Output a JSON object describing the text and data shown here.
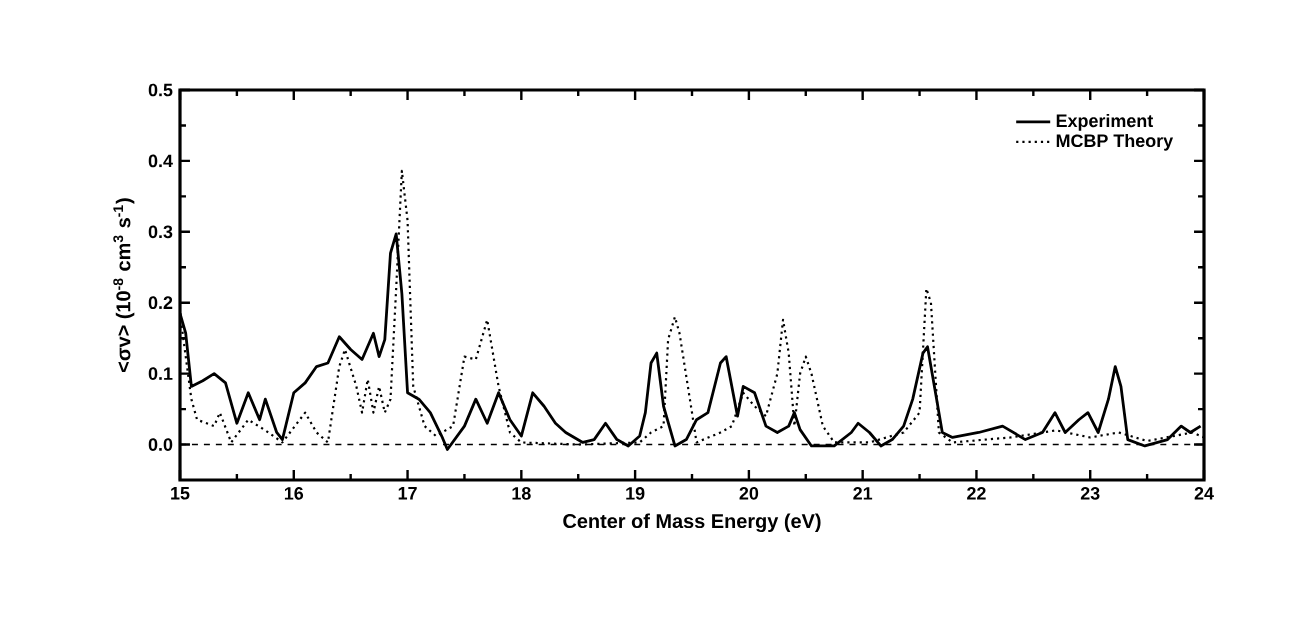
{
  "chart_data": {
    "type": "line",
    "xlabel": "Center of Mass Energy (eV)",
    "ylabel": "<σv> (10$^{-8}$ cm$^{3}$ s$^{-1}$)",
    "xlim": [
      15,
      24
    ],
    "ylim": [
      -0.05,
      0.5
    ],
    "xticks": [
      15,
      16,
      17,
      18,
      19,
      20,
      21,
      22,
      23,
      24
    ],
    "yticks": [
      {
        "value": 0,
        "label": "0.0"
      },
      0.1,
      0.2,
      0.3,
      0.4,
      0.5
    ],
    "grid": false,
    "legend": "top right",
    "ref_lines": [
      {
        "axis": "y",
        "value": 0,
        "line_style": "dashed",
        "color": "#000000"
      }
    ],
    "series": [
      {
        "name": "Experiment",
        "color": "#000000",
        "line_style": "solid",
        "x": [
          15.0,
          15.05,
          15.1,
          15.2,
          15.3,
          15.4,
          15.5,
          15.6,
          15.7,
          15.75,
          15.85,
          15.9,
          16.0,
          16.1,
          16.2,
          16.3,
          16.4,
          16.5,
          16.6,
          16.7,
          16.75,
          16.8,
          16.85,
          16.9,
          16.95,
          17.0,
          17.1,
          17.2,
          17.3,
          17.35,
          17.5,
          17.6,
          17.7,
          17.8,
          17.9,
          18.0,
          18.1,
          18.2,
          18.3,
          18.39,
          18.54,
          18.64,
          18.74,
          18.84,
          18.94,
          19.04,
          19.09,
          19.14,
          19.19,
          19.25,
          19.35,
          19.45,
          19.54,
          19.64,
          19.75,
          19.8,
          19.85,
          19.9,
          19.95,
          20.05,
          20.15,
          20.25,
          20.35,
          20.4,
          20.45,
          20.55,
          20.75,
          20.9,
          20.96,
          21.06,
          21.16,
          21.26,
          21.36,
          21.44,
          21.53,
          21.57,
          21.65,
          21.7,
          21.79,
          22.02,
          22.23,
          22.43,
          22.58,
          22.69,
          22.78,
          22.9,
          22.98,
          23.07,
          23.16,
          23.22,
          23.27,
          23.33,
          23.48,
          23.68,
          23.8,
          23.88,
          23.97
        ],
        "values": [
          0.185,
          0.157,
          0.082,
          0.09,
          0.1,
          0.087,
          0.03,
          0.073,
          0.035,
          0.064,
          0.017,
          0.007,
          0.073,
          0.087,
          0.11,
          0.115,
          0.152,
          0.134,
          0.12,
          0.157,
          0.124,
          0.148,
          0.27,
          0.297,
          0.213,
          0.073,
          0.064,
          0.045,
          0.012,
          -0.007,
          0.026,
          0.064,
          0.03,
          0.073,
          0.035,
          0.012,
          0.073,
          0.054,
          0.03,
          0.017,
          0.003,
          0.007,
          0.03,
          0.007,
          -0.002,
          0.012,
          0.045,
          0.115,
          0.129,
          0.054,
          -0.002,
          0.007,
          0.035,
          0.045,
          0.115,
          0.124,
          0.082,
          0.04,
          0.082,
          0.073,
          0.026,
          0.017,
          0.026,
          0.045,
          0.021,
          -0.002,
          -0.002,
          0.017,
          0.03,
          0.017,
          -0.002,
          0.007,
          0.026,
          0.064,
          0.129,
          0.138,
          0.064,
          0.017,
          0.01,
          0.017,
          0.026,
          0.007,
          0.017,
          0.045,
          0.017,
          0.035,
          0.045,
          0.017,
          0.064,
          0.11,
          0.082,
          0.007,
          -0.002,
          0.007,
          0.026,
          0.017,
          0.026
        ]
      },
      {
        "name": "MCBP Theory",
        "color": "#000000",
        "line_style": "dotted",
        "x": [
          15.0,
          15.1,
          15.15,
          15.3,
          15.35,
          15.45,
          15.6,
          15.75,
          15.9,
          16.1,
          16.2,
          16.3,
          16.4,
          16.45,
          16.55,
          16.6,
          16.65,
          16.7,
          16.75,
          16.8,
          16.85,
          16.9,
          16.95,
          17.0,
          17.05,
          17.15,
          17.25,
          17.4,
          17.5,
          17.6,
          17.7,
          17.8,
          17.9,
          18.0,
          18.5,
          19.04,
          19.14,
          19.25,
          19.29,
          19.35,
          19.39,
          19.5,
          19.54,
          19.75,
          19.85,
          19.95,
          20.05,
          20.15,
          20.25,
          20.3,
          20.35,
          20.4,
          20.45,
          20.5,
          20.55,
          20.65,
          20.75,
          21.06,
          21.36,
          21.5,
          21.56,
          21.6,
          21.67,
          21.79,
          22.3,
          22.7,
          23.0,
          23.25,
          23.5,
          23.9,
          24.0
        ],
        "values": [
          0.185,
          0.064,
          0.035,
          0.026,
          0.045,
          0.003,
          0.035,
          0.02,
          0.003,
          0.045,
          0.017,
          0.003,
          0.11,
          0.134,
          0.082,
          0.045,
          0.092,
          0.045,
          0.082,
          0.045,
          0.064,
          0.22,
          0.386,
          0.316,
          0.082,
          0.026,
          0.012,
          0.026,
          0.124,
          0.12,
          0.176,
          0.082,
          0.017,
          0.003,
          0.0,
          0.003,
          0.017,
          0.026,
          0.148,
          0.18,
          0.157,
          0.045,
          0.003,
          0.017,
          0.026,
          0.073,
          0.054,
          0.04,
          0.1,
          0.176,
          0.129,
          0.026,
          0.1,
          0.124,
          0.1,
          0.026,
          0.003,
          0.003,
          0.017,
          0.045,
          0.22,
          0.2,
          0.017,
          0.003,
          0.01,
          0.02,
          0.01,
          0.017,
          0.005,
          0.017,
          0.01
        ]
      }
    ]
  }
}
